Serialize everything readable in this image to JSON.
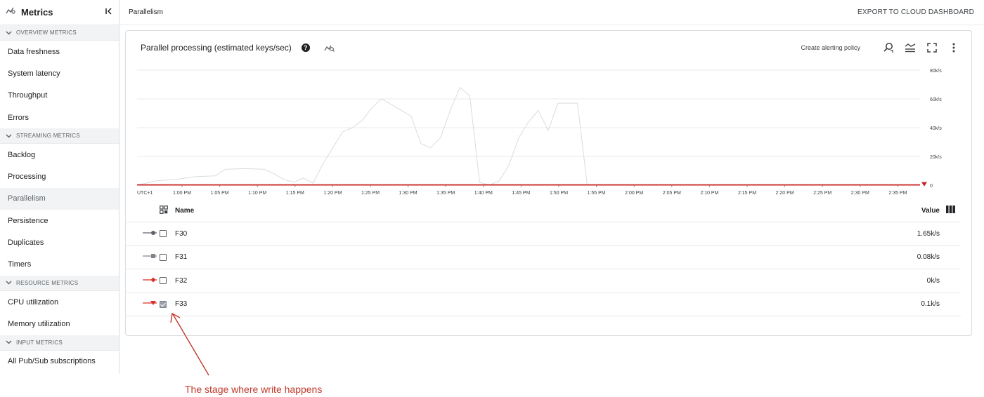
{
  "sidebar": {
    "title": "Metrics",
    "collapse_icon": "collapse-icon",
    "sections": [
      {
        "title": "OVERVIEW METRICS",
        "items": [
          "Data freshness",
          "System latency",
          "Throughput",
          "Errors"
        ]
      },
      {
        "title": "STREAMING METRICS",
        "items": [
          "Backlog",
          "Processing",
          "Parallelism",
          "Persistence",
          "Duplicates",
          "Timers"
        ]
      },
      {
        "title": "RESOURCE METRICS",
        "items": [
          "CPU utilization",
          "Memory utilization"
        ]
      },
      {
        "title": "INPUT METRICS",
        "items": [
          "All Pub/Sub subscriptions"
        ]
      }
    ],
    "active_item": "Parallelism"
  },
  "header": {
    "breadcrumb": "Parallelism",
    "export_label": "EXPORT TO CLOUD DASHBOARD"
  },
  "card": {
    "title": "Parallel processing (estimated keys/sec)",
    "alert_label": "Create alerting policy"
  },
  "chart_data": {
    "type": "line",
    "timezone_label": "UTC+1",
    "x_ticks": [
      "1:00 PM",
      "1:05 PM",
      "1:10 PM",
      "1:15 PM",
      "1:20 PM",
      "1:25 PM",
      "1:30 PM",
      "1:35 PM",
      "1:40 PM",
      "1:45 PM",
      "1:50 PM",
      "1:55 PM",
      "2:00 PM",
      "2:05 PM",
      "2:10 PM",
      "2:15 PM",
      "2:20 PM",
      "2:25 PM",
      "2:30 PM",
      "2:35 PM"
    ],
    "y_ticks": [
      "80k/s",
      "60k/s",
      "40k/s",
      "20k/s",
      "0"
    ],
    "ylim": [
      0,
      80000
    ],
    "grid": true,
    "series": [
      {
        "name": "F30",
        "color": "#dadce0",
        "points": [
          [
            0.0,
            0
          ],
          [
            1.0,
            3000
          ],
          [
            2.0,
            4000
          ],
          [
            3.0,
            6000
          ],
          [
            4.0,
            6500
          ],
          [
            4.5,
            11000
          ],
          [
            5.5,
            11500
          ],
          [
            6.5,
            11000
          ],
          [
            7.0,
            8000
          ],
          [
            7.5,
            4000
          ],
          [
            8.0,
            2000
          ],
          [
            8.5,
            5000
          ],
          [
            9.0,
            1500
          ],
          [
            9.5,
            15000
          ],
          [
            10.0,
            26000
          ],
          [
            10.5,
            37000
          ],
          [
            11.0,
            40000
          ],
          [
            11.5,
            45000
          ],
          [
            12.0,
            54000
          ],
          [
            12.5,
            60000
          ],
          [
            13.0,
            56000
          ],
          [
            13.5,
            52000
          ],
          [
            14.0,
            48000
          ],
          [
            14.5,
            29000
          ],
          [
            15.0,
            26000
          ],
          [
            15.5,
            33000
          ],
          [
            16.0,
            52000
          ],
          [
            16.5,
            68000
          ],
          [
            17.0,
            62000
          ],
          [
            17.5,
            2000
          ],
          [
            18.0,
            0
          ],
          [
            18.5,
            3000
          ],
          [
            19.0,
            14000
          ],
          [
            19.5,
            33000
          ],
          [
            20.0,
            44000
          ],
          [
            20.5,
            52000
          ],
          [
            21.0,
            38000
          ],
          [
            21.5,
            57000
          ],
          [
            22.5,
            57000
          ],
          [
            23.0,
            0
          ],
          [
            24,
            0
          ],
          [
            26,
            0
          ],
          [
            28,
            0
          ],
          [
            30,
            0
          ],
          [
            32,
            0
          ],
          [
            34,
            0
          ],
          [
            36,
            0
          ],
          [
            38,
            0
          ],
          [
            40,
            0
          ]
        ]
      },
      {
        "name": "F31",
        "color": "#9aa0a6",
        "points": [
          [
            0,
            0
          ],
          [
            40,
            0
          ]
        ]
      },
      {
        "name": "F32",
        "color": "#d93025",
        "points": [
          [
            0,
            0
          ],
          [
            40,
            0
          ]
        ]
      },
      {
        "name": "F33",
        "color": "#c5221f",
        "points": [
          [
            0,
            200
          ],
          [
            40,
            200
          ]
        ]
      }
    ]
  },
  "table": {
    "headers": {
      "name": "Name",
      "value": "Value"
    },
    "rows": [
      {
        "name": "F30",
        "value": "1.65k/s",
        "checked": false,
        "legend": "circle",
        "color": "#5f6368"
      },
      {
        "name": "F31",
        "value": "0.08k/s",
        "checked": false,
        "legend": "square",
        "color": "#80868b"
      },
      {
        "name": "F32",
        "value": "0k/s",
        "checked": false,
        "legend": "diamond",
        "color": "#d93025"
      },
      {
        "name": "F33",
        "value": "0.1k/s",
        "checked": true,
        "legend": "triangle",
        "color": "#d93025"
      }
    ]
  },
  "annotation": {
    "text": "The stage where write happens",
    "color": "#c0392b"
  }
}
